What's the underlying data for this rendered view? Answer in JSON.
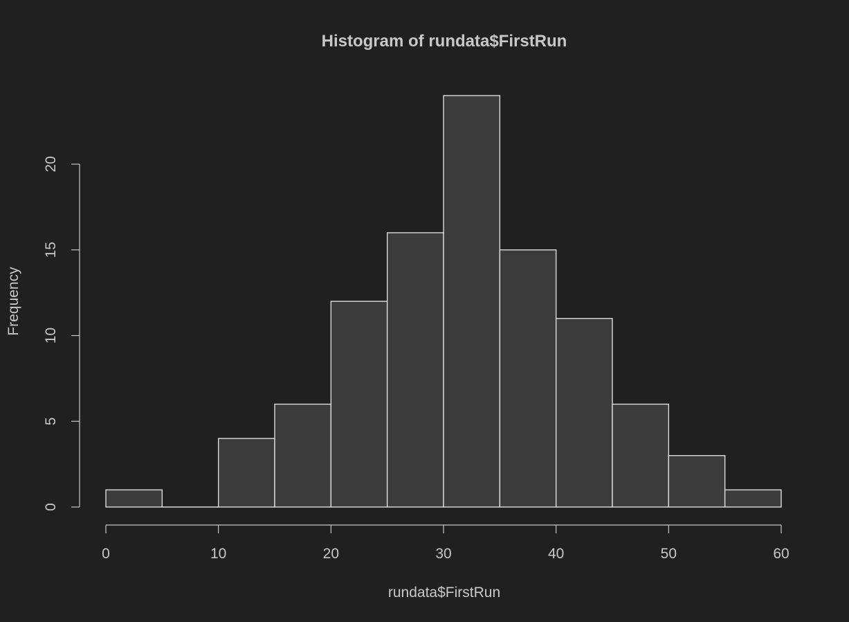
{
  "chart_data": {
    "type": "bar",
    "title": "Histogram of rundata$FirstRun",
    "xlabel": "rundata$FirstRun",
    "ylabel": "Frequency",
    "bins": [
      {
        "from": 0,
        "to": 5,
        "count": 1
      },
      {
        "from": 5,
        "to": 10,
        "count": 0
      },
      {
        "from": 10,
        "to": 15,
        "count": 4
      },
      {
        "from": 15,
        "to": 20,
        "count": 6
      },
      {
        "from": 20,
        "to": 25,
        "count": 12
      },
      {
        "from": 25,
        "to": 30,
        "count": 16
      },
      {
        "from": 30,
        "to": 35,
        "count": 24
      },
      {
        "from": 35,
        "to": 40,
        "count": 15
      },
      {
        "from": 40,
        "to": 45,
        "count": 11
      },
      {
        "from": 45,
        "to": 50,
        "count": 6
      },
      {
        "from": 50,
        "to": 55,
        "count": 3
      },
      {
        "from": 55,
        "to": 60,
        "count": 1
      }
    ],
    "xlim": [
      0,
      60
    ],
    "ylim": [
      0,
      24
    ],
    "x_ticks": [
      "0",
      "10",
      "20",
      "30",
      "40",
      "50",
      "60"
    ],
    "y_ticks": [
      "0",
      "5",
      "10",
      "15",
      "20"
    ],
    "grid": false,
    "colors": {
      "background": "#202020",
      "bar_fill": "#3c3c3c",
      "bar_border": "#dcdcdc",
      "axis": "#c8c8c8",
      "text": "#c8c8c8"
    }
  }
}
